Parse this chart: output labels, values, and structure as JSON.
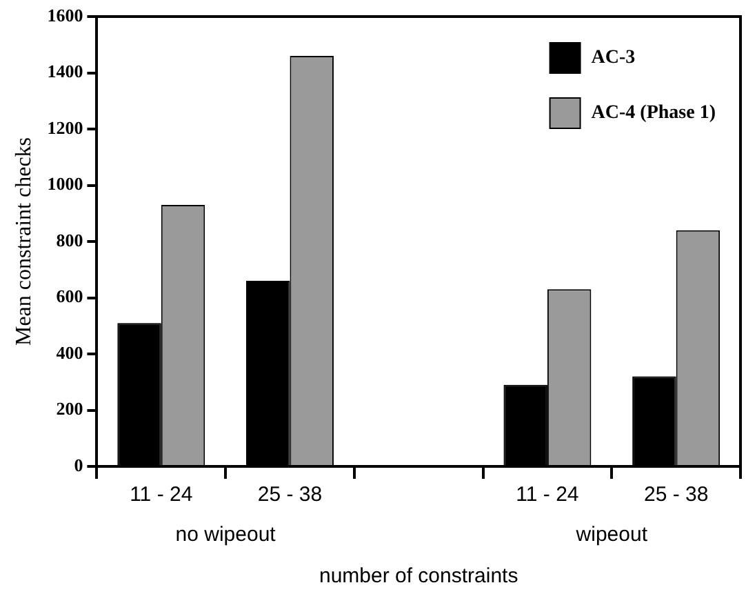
{
  "chart_data": {
    "type": "bar",
    "ylabel": "Mean constraint checks",
    "xlabel": "number of constraints",
    "categories": [
      "11 - 24",
      "25 - 38",
      null,
      "11 - 24",
      "25 - 38"
    ],
    "series": [
      {
        "name": "AC-3",
        "color": "#000000",
        "values": [
          510,
          660,
          null,
          290,
          320
        ]
      },
      {
        "name": "AC-4 (Phase 1)",
        "color": "#9a9a9a",
        "values": [
          930,
          1460,
          null,
          630,
          840
        ]
      }
    ],
    "ylim": [
      0,
      1600
    ],
    "yticks": [
      0,
      200,
      400,
      600,
      800,
      1000,
      1200,
      1400,
      1600
    ],
    "grid": false,
    "legend": "top right",
    "annotations": [
      "no wipeout",
      "wipeout"
    ]
  }
}
